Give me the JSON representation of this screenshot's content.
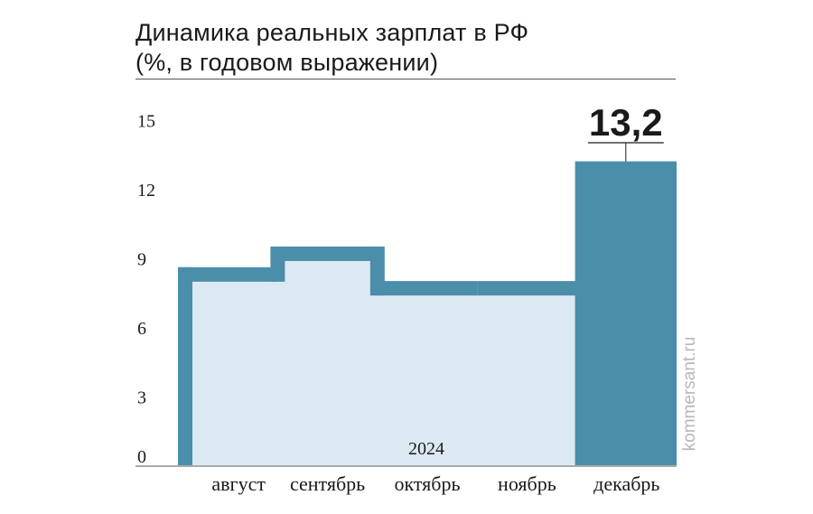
{
  "header": {
    "title_line1": "Динамика реальных зарплат в РФ",
    "title_line2": "(%, в годовом выражении)"
  },
  "watermark": "kommersant.ru",
  "colors": {
    "bar": "#4a8ea9",
    "fill": "#dde9f2",
    "text": "#1a1a1a",
    "axis": "#555555"
  },
  "chart_data": {
    "type": "bar",
    "title": "Динамика реальных зарплат в РФ (%, в годовом выражении)",
    "categories": [
      "август",
      "сентябрь",
      "октябрь",
      "ноябрь",
      "декабрь"
    ],
    "values": [
      8.6,
      9.5,
      8.0,
      8.0,
      13.2
    ],
    "highlight": {
      "category": "декабрь",
      "label": "13,2"
    },
    "year_label": "2024",
    "yticks": [
      0,
      3,
      6,
      9,
      12,
      15
    ],
    "ylim": [
      0,
      15.5
    ],
    "grid": false
  }
}
